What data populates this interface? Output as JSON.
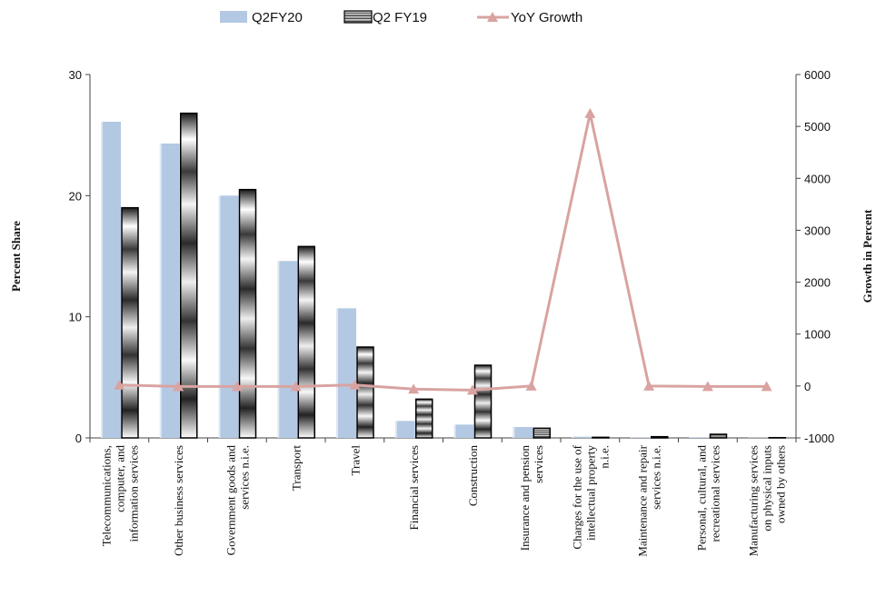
{
  "chart_data": {
    "type": "bar",
    "categories": [
      [
        "Telecommunications,",
        "computer, and",
        "information services"
      ],
      [
        "Other business services"
      ],
      [
        "Government goods and",
        "services n.i.e."
      ],
      [
        "Transport"
      ],
      [
        "Travel"
      ],
      [
        "Financial services"
      ],
      [
        "Construction"
      ],
      [
        "Insurance and pension",
        "services"
      ],
      [
        "Charges for the use of",
        "intellectual property",
        "n.i.e."
      ],
      [
        "Maintenance and repair",
        "services n.i.e."
      ],
      [
        "Personal, cultural, and",
        "recreational services"
      ],
      [
        "Manufacturing services",
        "on physical inputs",
        "owned by others"
      ]
    ],
    "series": [
      {
        "name": "Q2FY20",
        "axis": "left",
        "kind": "bar",
        "color": "#b3c8e3",
        "values": [
          26.1,
          24.3,
          20.0,
          14.6,
          10.7,
          1.4,
          1.1,
          0.9,
          0.1,
          0.05,
          0.05,
          0.02
        ]
      },
      {
        "name": "Q2 FY19",
        "axis": "left",
        "kind": "bar",
        "style": "gradient-grey",
        "values": [
          19.0,
          26.8,
          20.5,
          15.8,
          7.5,
          3.2,
          6.0,
          0.8,
          0.05,
          0.1,
          0.3,
          0.02
        ]
      },
      {
        "name": "YoY Growth",
        "axis": "right",
        "kind": "line",
        "color": "#d9a3a1",
        "values": [
          20,
          -10,
          -10,
          -10,
          20,
          -60,
          -80,
          0,
          5250,
          0,
          -10,
          -10
        ]
      }
    ],
    "yleft": {
      "label": "Percent Share",
      "ticks": [
        0,
        10,
        20,
        30
      ],
      "ylim": [
        0,
        30
      ]
    },
    "yright": {
      "label": "Growth in Percent",
      "ticks": [
        -1000,
        0,
        1000,
        2000,
        3000,
        4000,
        5000,
        6000
      ],
      "ylim": [
        -1000,
        6000
      ]
    },
    "legend": "top-center"
  }
}
